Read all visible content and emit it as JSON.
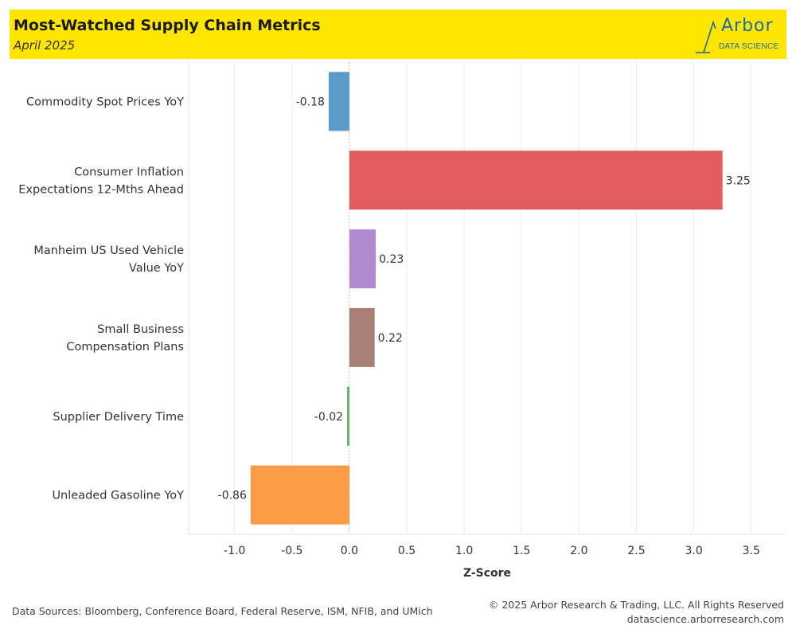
{
  "header": {
    "title": "Most-Watched Supply Chain Metrics",
    "subtitle": "April 2025",
    "logo_word": "Arbor",
    "logo_sub": "DATA SCIENCE"
  },
  "footer": {
    "sources": "Data Sources: Bloomberg, Conference Board, Federal Reserve, ISM, NFIB, and UMich",
    "copyright": "© 2025 Arbor Research & Trading, LLC. All Rights Reserved",
    "website": "datascience.arborresearch.com"
  },
  "colors": {
    "header_bg": "#ffe600",
    "brand_blue": "#1f6aa3"
  },
  "chart_data": {
    "type": "bar",
    "orientation": "horizontal",
    "xlabel": "Z-Score",
    "ylabel": "",
    "xlim": [
      -1.4,
      3.8
    ],
    "xticks": [
      -1.0,
      -0.5,
      0.0,
      0.5,
      1.0,
      1.5,
      2.0,
      2.5,
      3.0,
      3.5
    ],
    "xtick_labels": [
      "-1.0",
      "-0.5",
      "0.0",
      "0.5",
      "1.0",
      "1.5",
      "2.0",
      "2.5",
      "3.0",
      "3.5"
    ],
    "grid": "vertical",
    "categories": [
      [
        "Commodity Spot Prices YoY"
      ],
      [
        "Consumer Inflation",
        "Expectations 12-Mths Ahead"
      ],
      [
        "Manheim US Used Vehicle",
        "Value YoY"
      ],
      [
        "Small Business",
        "Compensation Plans"
      ],
      [
        "Supplier Delivery Time"
      ],
      [
        "Unleaded Gasoline YoY"
      ]
    ],
    "values": [
      -0.18,
      3.25,
      0.23,
      0.22,
      -0.02,
      -0.86
    ],
    "value_labels": [
      "-0.18",
      "3.25",
      "0.23",
      "0.22",
      "-0.02",
      "-0.86"
    ],
    "colors": [
      "#5b9bc9",
      "#e05c5e",
      "#b08ccf",
      "#a77f74",
      "#5cb85c",
      "#fd9c45"
    ]
  }
}
